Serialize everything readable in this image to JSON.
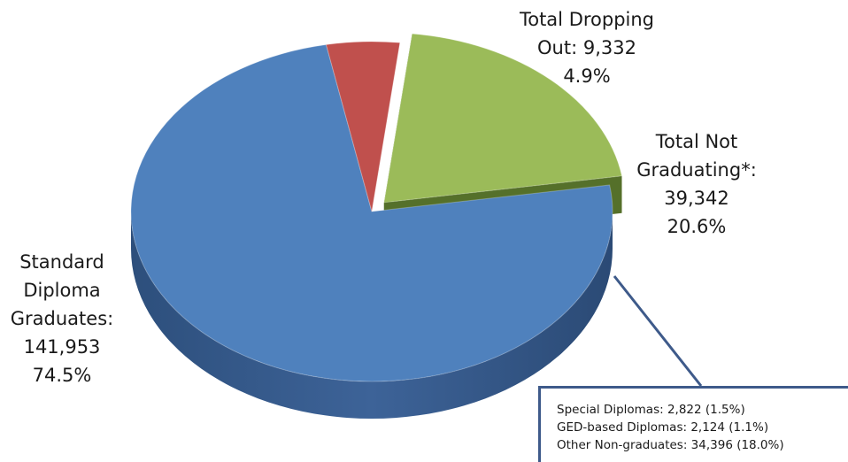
{
  "chart_data": {
    "type": "pie",
    "slices": [
      {
        "name": "Standard Diploma Graduates",
        "value": 141953,
        "percent": 74.5,
        "color": "#4f81bd",
        "label_lines": [
          "Standard",
          "Diploma",
          "Graduates:",
          "141,953",
          "74.5%"
        ]
      },
      {
        "name": "Total Dropping Out",
        "value": 9332,
        "percent": 4.9,
        "color": "#c0504d",
        "label_lines": [
          "Total Dropping",
          "Out: 9,332",
          "4.9%"
        ]
      },
      {
        "name": "Total Not Graduating*",
        "value": 39342,
        "percent": 20.6,
        "color": "#9bbb59",
        "exploded": true,
        "label_lines": [
          "Total Not",
          "Graduating*:",
          "39,342",
          "20.6%"
        ]
      }
    ],
    "breakdown": {
      "of": "Total Not Graduating*",
      "items": [
        "Special Diplomas: 2,822 (1.5%)",
        "GED-based Diplomas: 2,124 (1.1%)",
        "Other Non-graduates: 34,396 (18.0%)"
      ]
    }
  }
}
